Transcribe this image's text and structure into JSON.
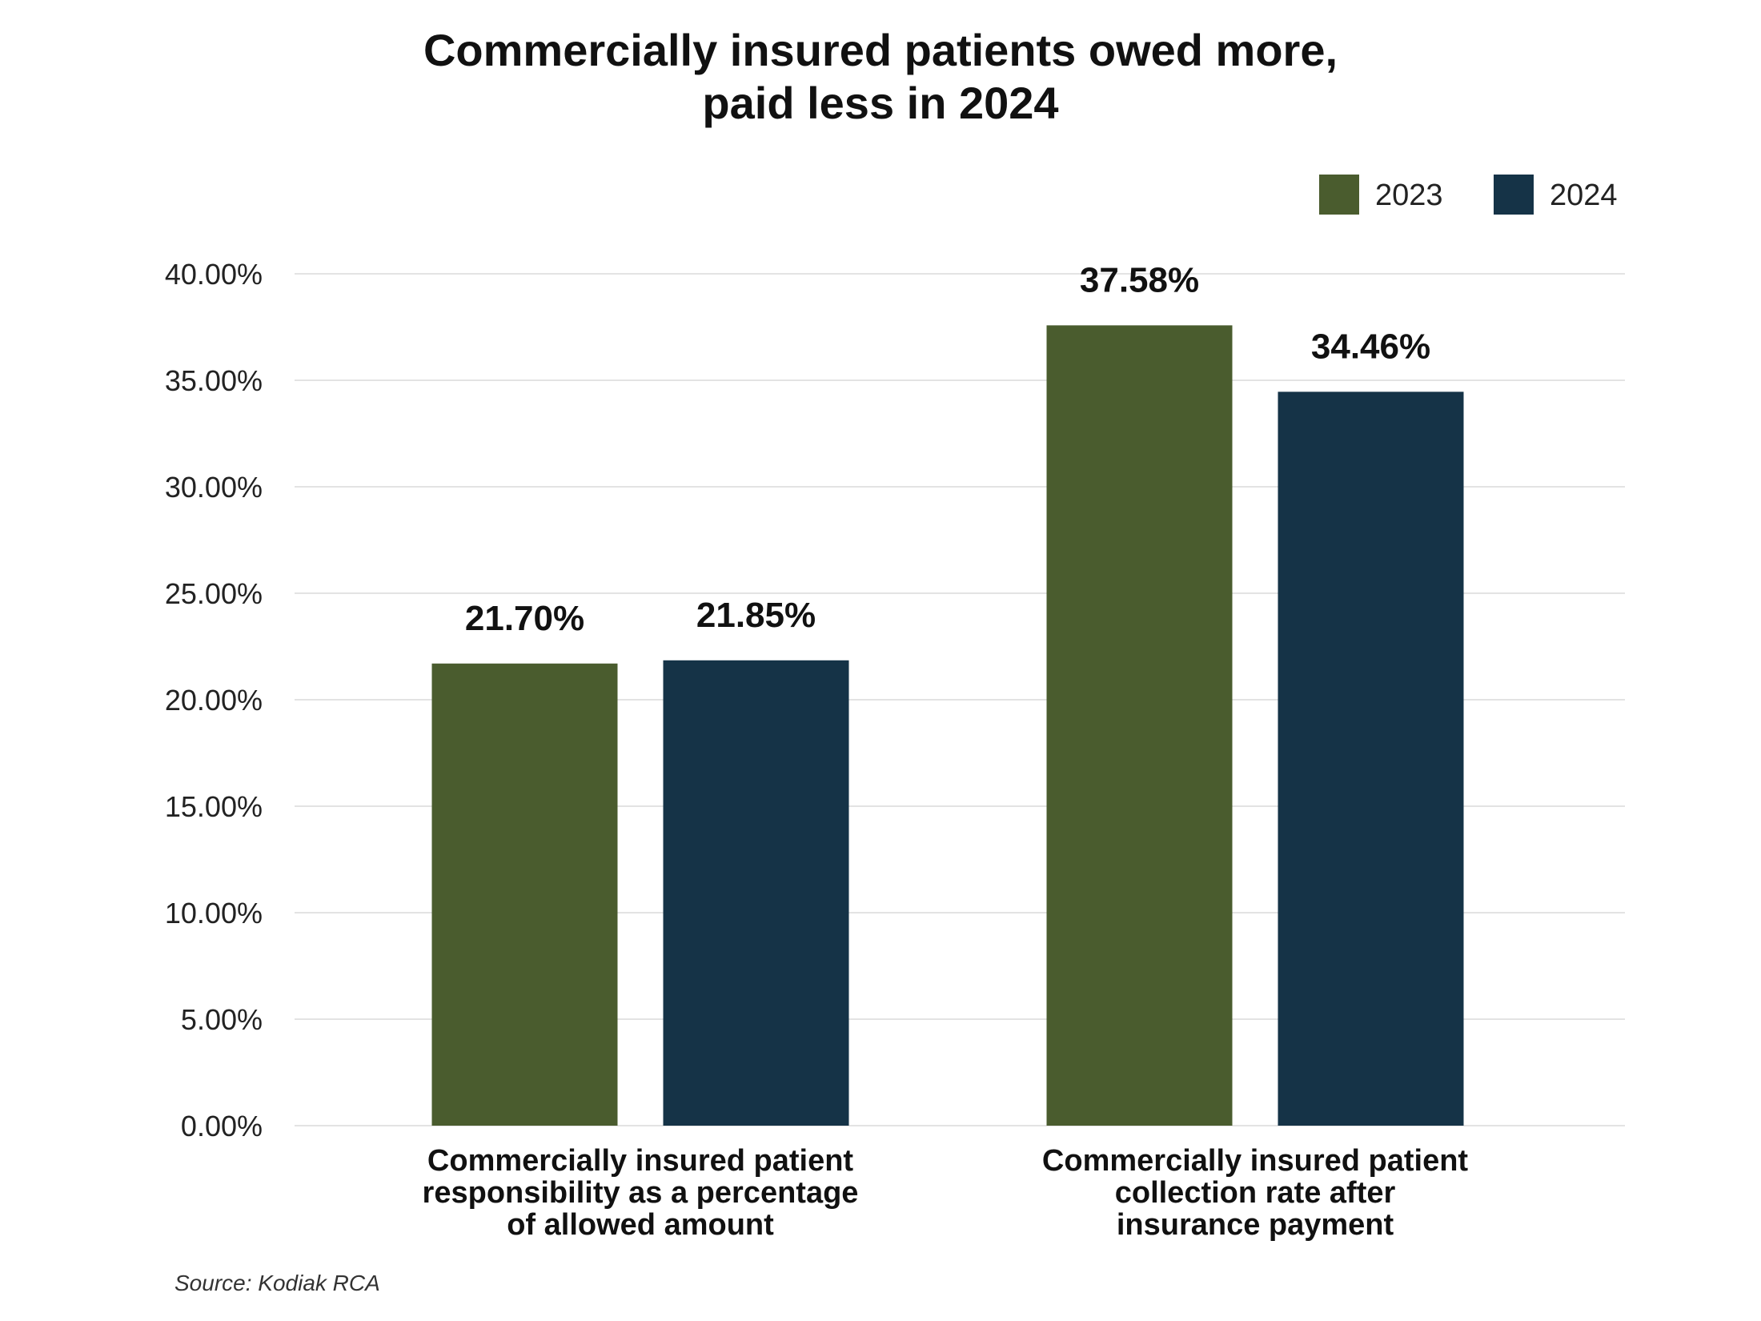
{
  "chart_data": {
    "type": "bar",
    "title_lines": [
      "Commercially insured patients owed more,",
      "paid less in 2024"
    ],
    "categories": [
      [
        "Commercially insured patient",
        "responsibility as a percentage",
        "of allowed amount"
      ],
      [
        "Commercially insured patient",
        "collection rate after",
        "insurance payment"
      ]
    ],
    "series": [
      {
        "name": "2023",
        "color": "#4a5c2e",
        "values": [
          21.7,
          37.58
        ],
        "labels": [
          "21.70%",
          "37.58%"
        ]
      },
      {
        "name": "2024",
        "color": "#153347",
        "values": [
          21.85,
          34.46
        ],
        "labels": [
          "21.85%",
          "34.46%"
        ]
      }
    ],
    "yticks": [
      "0.00%",
      "5.00%",
      "10.00%",
      "15.00%",
      "20.00%",
      "25.00%",
      "30.00%",
      "35.00%",
      "40.00%"
    ],
    "ylim": [
      0,
      40
    ],
    "grid": true,
    "legend_position": "top-right",
    "source": "Source: Kodiak RCA"
  }
}
